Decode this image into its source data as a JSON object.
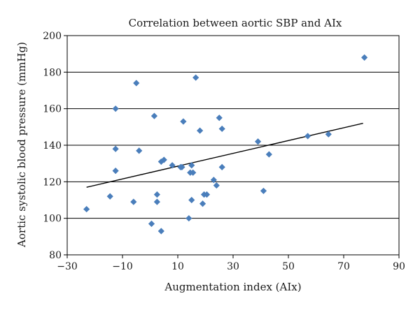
{
  "chart_data": {
    "type": "scatter",
    "title": "Correlation between aortic SBP and AIx",
    "xlabel": "Augmentation index (AIx)",
    "ylabel": "Aortic systolic blood pressure (mmHg)",
    "xlim": [
      -30,
      90
    ],
    "ylim": [
      80,
      200
    ],
    "xticks": [
      -30,
      -10,
      10,
      30,
      50,
      70,
      90
    ],
    "yticks": [
      80,
      100,
      120,
      140,
      160,
      180,
      200
    ],
    "xtick_labels": [
      "−30",
      "−10",
      "10",
      "30",
      "50",
      "70",
      "90"
    ],
    "ytick_labels": [
      "80",
      "100",
      "120",
      "140",
      "160",
      "180",
      "200"
    ],
    "grid": "horizontal",
    "marker_color": "#4a7ebb",
    "line_color": "#000000",
    "trendline": {
      "x": [
        -23,
        77
      ],
      "y": [
        117,
        152
      ]
    },
    "points": [
      {
        "x": -23,
        "y": 105
      },
      {
        "x": -14.5,
        "y": 112
      },
      {
        "x": -12.5,
        "y": 160
      },
      {
        "x": -12.5,
        "y": 138
      },
      {
        "x": -12.5,
        "y": 126
      },
      {
        "x": -5,
        "y": 174
      },
      {
        "x": -4,
        "y": 137
      },
      {
        "x": -6,
        "y": 109
      },
      {
        "x": 1.5,
        "y": 156
      },
      {
        "x": 2.5,
        "y": 113
      },
      {
        "x": 2.5,
        "y": 109
      },
      {
        "x": 4,
        "y": 131
      },
      {
        "x": 5,
        "y": 132
      },
      {
        "x": 8,
        "y": 129
      },
      {
        "x": 0.5,
        "y": 97
      },
      {
        "x": 4,
        "y": 93
      },
      {
        "x": 11,
        "y": 128
      },
      {
        "x": 11.5,
        "y": 128
      },
      {
        "x": 12,
        "y": 153
      },
      {
        "x": 14.5,
        "y": 125
      },
      {
        "x": 15,
        "y": 129
      },
      {
        "x": 15.5,
        "y": 125
      },
      {
        "x": 15,
        "y": 110
      },
      {
        "x": 16.5,
        "y": 177
      },
      {
        "x": 14,
        "y": 100
      },
      {
        "x": 18,
        "y": 148
      },
      {
        "x": 19,
        "y": 108
      },
      {
        "x": 19.5,
        "y": 113
      },
      {
        "x": 20.5,
        "y": 113
      },
      {
        "x": 23,
        "y": 121
      },
      {
        "x": 24,
        "y": 118
      },
      {
        "x": 25,
        "y": 155
      },
      {
        "x": 26,
        "y": 149
      },
      {
        "x": 26,
        "y": 128
      },
      {
        "x": 39,
        "y": 142
      },
      {
        "x": 41,
        "y": 115
      },
      {
        "x": 43,
        "y": 135
      },
      {
        "x": 57,
        "y": 145
      },
      {
        "x": 64.5,
        "y": 146
      },
      {
        "x": 77.5,
        "y": 188
      }
    ]
  }
}
